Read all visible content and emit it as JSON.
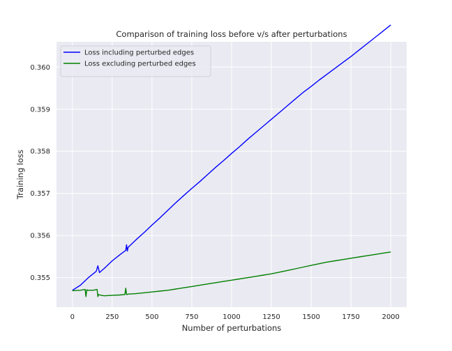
{
  "chart_data": {
    "type": "line",
    "title": "Comparison of training loss before v/s after perturbations",
    "xlabel": "Number of perturbations",
    "ylabel": "Training loss",
    "xlim": [
      -100,
      2100
    ],
    "ylim": [
      0.3543,
      0.3606
    ],
    "x_ticks": [
      0,
      250,
      500,
      750,
      1000,
      1250,
      1500,
      1750,
      2000
    ],
    "y_ticks": [
      0.355,
      0.356,
      0.357,
      0.358,
      0.359,
      0.36
    ],
    "x_tick_labels": [
      "0",
      "250",
      "500",
      "750",
      "1000",
      "1250",
      "1500",
      "1750",
      "2000"
    ],
    "y_tick_labels": [
      "0.355",
      "0.356",
      "0.357",
      "0.358",
      "0.359",
      "0.360"
    ],
    "grid": true,
    "legend_position": "top-left",
    "background": "#eaeaf2",
    "series": [
      {
        "name": "Loss including perturbed edges",
        "color": "#0000ff",
        "x": [
          0,
          50,
          100,
          150,
          160,
          170,
          200,
          250,
          300,
          335,
          340,
          345,
          350,
          400,
          450,
          500,
          550,
          600,
          650,
          700,
          750,
          800,
          850,
          900,
          950,
          1000,
          1050,
          1100,
          1150,
          1200,
          1250,
          1300,
          1350,
          1400,
          1450,
          1500,
          1550,
          1600,
          1650,
          1700,
          1750,
          1800,
          1850,
          1900,
          1950,
          2000
        ],
        "y": [
          0.3547,
          0.35482,
          0.355,
          0.35515,
          0.35528,
          0.35512,
          0.35522,
          0.3554,
          0.35555,
          0.35565,
          0.35578,
          0.35563,
          0.35572,
          0.3559,
          0.35607,
          0.35625,
          0.35642,
          0.3566,
          0.35678,
          0.35695,
          0.35712,
          0.35728,
          0.35745,
          0.35762,
          0.35778,
          0.35795,
          0.35811,
          0.35828,
          0.35844,
          0.3586,
          0.35876,
          0.35892,
          0.35908,
          0.35924,
          0.3594,
          0.35954,
          0.35969,
          0.35983,
          0.35997,
          0.36011,
          0.36025,
          0.3604,
          0.36055,
          0.3607,
          0.36085,
          0.361
        ]
      },
      {
        "name": "Loss excluding perturbed edges",
        "color": "#008000",
        "x": [
          0,
          50,
          80,
          85,
          90,
          100,
          130,
          155,
          160,
          165,
          180,
          200,
          250,
          300,
          330,
          335,
          340,
          350,
          400,
          450,
          500,
          550,
          600,
          650,
          700,
          750,
          800,
          850,
          900,
          950,
          1000,
          1050,
          1100,
          1150,
          1200,
          1250,
          1300,
          1350,
          1400,
          1450,
          1500,
          1550,
          1600,
          1650,
          1700,
          1750,
          1800,
          1850,
          1900,
          1950,
          2000
        ],
        "y": [
          0.35469,
          0.3547,
          0.35472,
          0.35455,
          0.35471,
          0.3547,
          0.3547,
          0.35472,
          0.35455,
          0.3546,
          0.35458,
          0.35457,
          0.35458,
          0.35459,
          0.3546,
          0.35475,
          0.3546,
          0.35461,
          0.35462,
          0.35464,
          0.35466,
          0.35468,
          0.3547,
          0.35473,
          0.35476,
          0.35479,
          0.35482,
          0.35485,
          0.35488,
          0.35491,
          0.35494,
          0.35497,
          0.355,
          0.35503,
          0.35506,
          0.35509,
          0.35513,
          0.35517,
          0.35521,
          0.35525,
          0.35529,
          0.35533,
          0.35537,
          0.3554,
          0.35543,
          0.35546,
          0.35549,
          0.35552,
          0.35555,
          0.35558,
          0.35561
        ]
      }
    ]
  }
}
